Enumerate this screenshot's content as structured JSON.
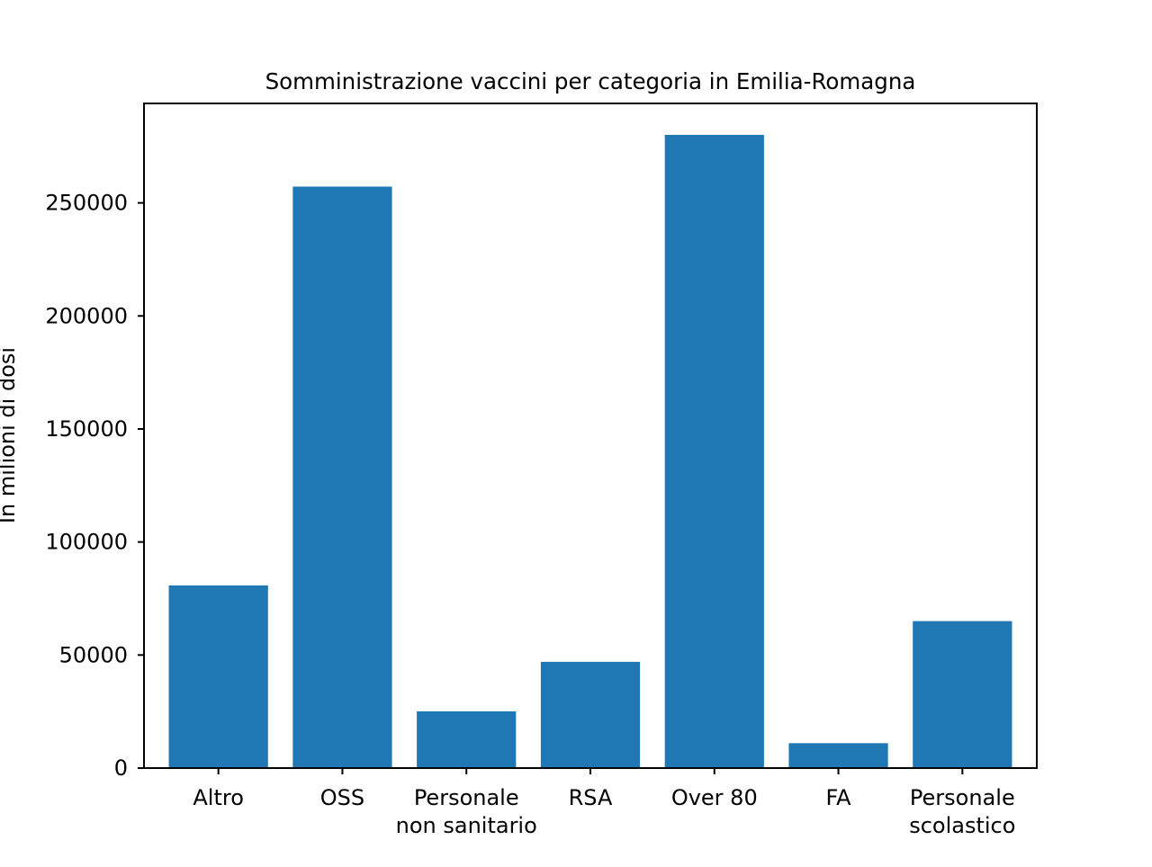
{
  "chart_data": {
    "type": "bar",
    "title": "Somministrazione vaccini per categoria in Emilia-Romagna",
    "xlabel": "",
    "ylabel": "In milioni di dosi",
    "categories": [
      [
        "Altro"
      ],
      [
        "OSS"
      ],
      [
        "Personale",
        "non sanitario"
      ],
      [
        "RSA"
      ],
      [
        "Over 80"
      ],
      [
        "FA"
      ],
      [
        "Personale",
        "scolastico"
      ]
    ],
    "values": [
      80800,
      257200,
      25100,
      47000,
      280100,
      11000,
      65000
    ],
    "ylim": [
      0,
      294000
    ],
    "yticks": [
      0,
      50000,
      100000,
      150000,
      200000,
      250000
    ],
    "grid": false,
    "bar_color": "#1f77b4"
  }
}
